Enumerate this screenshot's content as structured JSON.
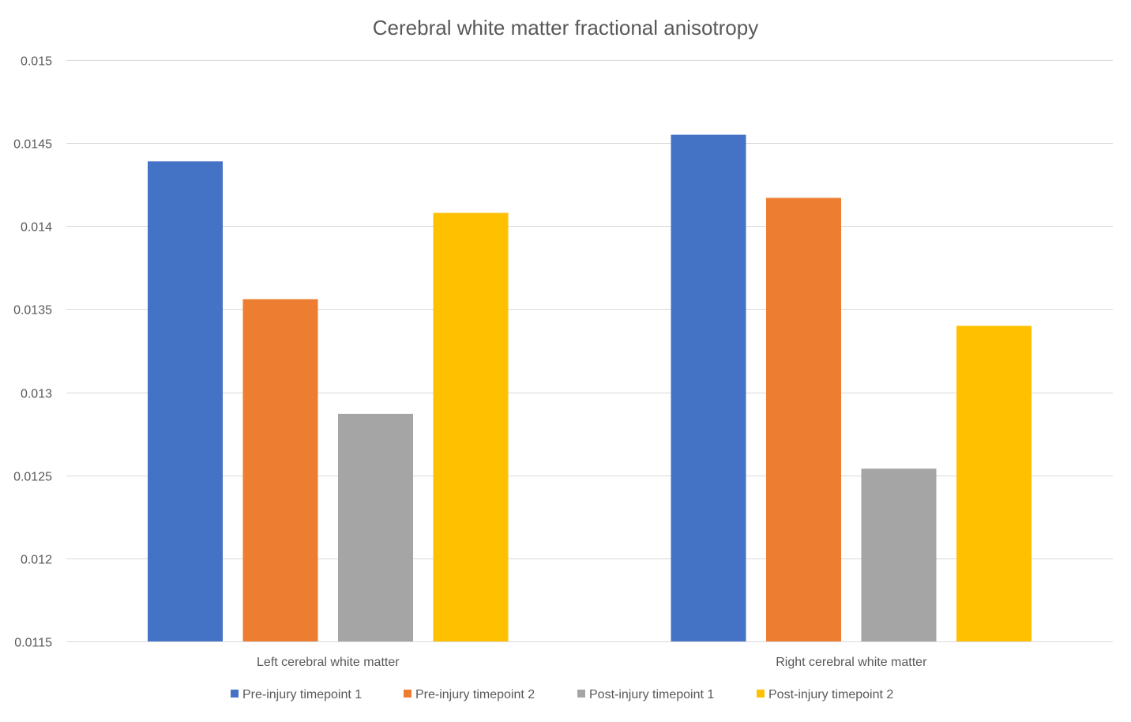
{
  "chart_data": {
    "type": "bar",
    "title": "Cerebral white matter fractional anisotropy",
    "xlabel": "",
    "ylabel": "",
    "categories": [
      "Left cerebral white matter",
      "Right cerebral white matter"
    ],
    "series": [
      {
        "name": "Pre-injury timepoint 1",
        "color": "#4472c4",
        "values": [
          0.01439,
          0.01455
        ]
      },
      {
        "name": "Pre-injury timepoint 2",
        "color": "#ed7d31",
        "values": [
          0.01356,
          0.01417
        ]
      },
      {
        "name": "Post-injury timepoint 1",
        "color": "#a5a5a5",
        "values": [
          0.01287,
          0.01254
        ]
      },
      {
        "name": "Post-injury timepoint 2",
        "color": "#ffc000",
        "values": [
          0.01408,
          0.0134
        ]
      }
    ],
    "ylim": [
      0.0115,
      0.015
    ],
    "yticks": [
      "0.015",
      "0.0145",
      "0.014",
      "0.0135",
      "0.013",
      "0.0125",
      "0.012",
      "0.0115"
    ],
    "grid": true,
    "legend_position": "bottom"
  }
}
